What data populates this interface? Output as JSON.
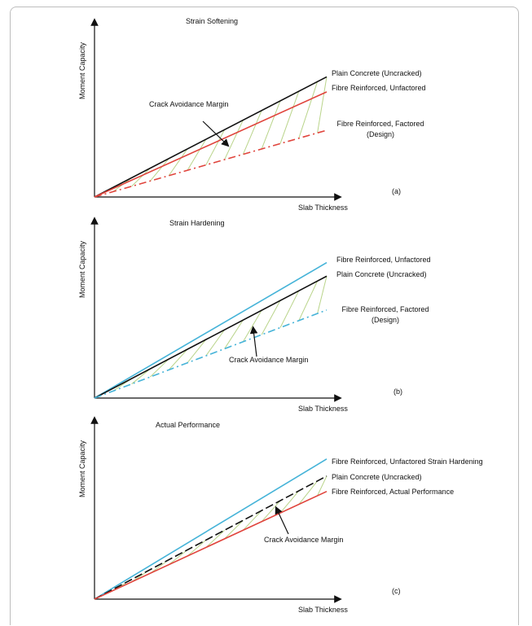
{
  "colors": {
    "plain": "#111111",
    "softening_unfactored": "#e0443c",
    "softening_factored": "#e0443c",
    "hardening_unfactored": "#45b3d8",
    "hardening_factored": "#45b3d8",
    "actual_unfactored": "#45b3d8",
    "actual_performance": "#e0443c",
    "hatch": "#b9d48a"
  },
  "chart_data": [
    {
      "type": "line",
      "panel_label": "(a)",
      "title": "Strain Softening",
      "xlabel": "Slab Thickness",
      "ylabel": "Moment Capacity",
      "annotation": "Crack Avoidance Margin",
      "xlim": [
        0,
        1
      ],
      "ylim": [
        0,
        1
      ],
      "series": [
        {
          "name": "Plain Concrete (Uncracked)",
          "x": [
            0,
            1
          ],
          "y": [
            0,
            0.72
          ],
          "style": "solid",
          "color_key": "plain",
          "label_lines": [
            "Plain Concrete (Uncracked)"
          ]
        },
        {
          "name": "Fibre Reinforced, Unfactored",
          "x": [
            0,
            1
          ],
          "y": [
            0,
            0.63
          ],
          "style": "solid",
          "color_key": "softening_unfactored",
          "label_lines": [
            "Fibre Reinforced, Unfactored"
          ]
        },
        {
          "name": "Fibre Reinforced, Factored (Design)",
          "x": [
            0,
            1
          ],
          "y": [
            0,
            0.4
          ],
          "style": "dashdot",
          "color_key": "softening_factored",
          "label_lines": [
            "Fibre Reinforced, Factored",
            "(Design)"
          ]
        }
      ],
      "hatched_between": [
        "Plain Concrete (Uncracked)",
        "Fibre Reinforced, Factored (Design)"
      ]
    },
    {
      "type": "line",
      "panel_label": "(b)",
      "title": "Strain Hardening",
      "xlabel": "Slab Thickness",
      "ylabel": "Moment Capacity",
      "annotation": "Crack Avoidance Margin",
      "xlim": [
        0,
        1
      ],
      "ylim": [
        0,
        1
      ],
      "series": [
        {
          "name": "Fibre Reinforced, Unfactored",
          "x": [
            0,
            1
          ],
          "y": [
            0,
            0.8
          ],
          "style": "solid",
          "color_key": "hardening_unfactored",
          "label_lines": [
            "Fibre Reinforced, Unfactored"
          ]
        },
        {
          "name": "Plain Concrete (Uncracked)",
          "x": [
            0,
            1
          ],
          "y": [
            0,
            0.72
          ],
          "style": "solid",
          "color_key": "plain",
          "label_lines": [
            "Plain Concrete (Uncracked)"
          ]
        },
        {
          "name": "Fibre Reinforced, Factored (Design)",
          "x": [
            0,
            1
          ],
          "y": [
            0,
            0.52
          ],
          "style": "dashdot",
          "color_key": "hardening_factored",
          "label_lines": [
            "Fibre Reinforced, Factored",
            "(Design)"
          ]
        }
      ],
      "hatched_between": [
        "Plain Concrete (Uncracked)",
        "Fibre Reinforced, Factored (Design)"
      ]
    },
    {
      "type": "line",
      "panel_label": "(c)",
      "title": "Actual Performance",
      "xlabel": "Slab Thickness",
      "ylabel": "Moment Capacity",
      "annotation": "Crack Avoidance Margin",
      "xlim": [
        0,
        1
      ],
      "ylim": [
        0,
        1
      ],
      "series": [
        {
          "name": "Fibre Reinforced, Unfactored Strain Hardening",
          "x": [
            0,
            1
          ],
          "y": [
            0,
            0.82
          ],
          "style": "solid",
          "color_key": "actual_unfactored",
          "label_lines": [
            "Fibre Reinforced, Unfactored Strain Hardening"
          ]
        },
        {
          "name": "Plain Concrete (Uncracked)",
          "x": [
            0,
            1
          ],
          "y": [
            0,
            0.72
          ],
          "style": "dash",
          "color_key": "plain",
          "label_lines": [
            "Plain Concrete (Uncracked)"
          ]
        },
        {
          "name": "Fibre Reinforced, Actual Performance",
          "x": [
            0,
            1
          ],
          "y": [
            0,
            0.63
          ],
          "style": "solid",
          "color_key": "actual_performance",
          "label_lines": [
            "Fibre Reinforced, Actual Performance"
          ]
        }
      ],
      "hatched_between": [
        "Plain Concrete (Uncracked)",
        "Fibre Reinforced, Actual Performance"
      ]
    }
  ]
}
